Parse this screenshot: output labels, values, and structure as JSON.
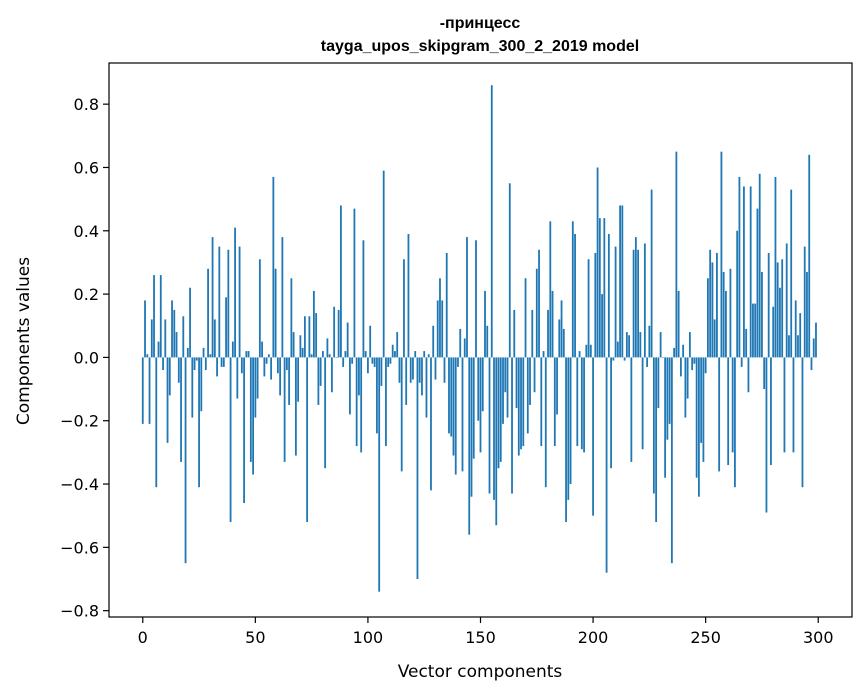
{
  "chart_data": {
    "type": "bar",
    "title": "-принцесс",
    "subtitle": "tayga_upos_skipgram_300_2_2019 model",
    "xlabel": "Vector components",
    "ylabel": "Components values",
    "xlim": [
      -15,
      315
    ],
    "ylim": [
      -0.82,
      0.93
    ],
    "xticks": [
      0,
      50,
      100,
      150,
      200,
      250,
      300
    ],
    "yticks": [
      -0.8,
      -0.6,
      -0.4,
      -0.2,
      0.0,
      0.2,
      0.4,
      0.6,
      0.8
    ],
    "ytick_labels": [
      "−0.8",
      "−0.6",
      "−0.4",
      "−0.2",
      "0.0",
      "0.2",
      "0.4",
      "0.6",
      "0.8"
    ],
    "bar_color": "#1f77b4",
    "grid": false,
    "legend": "none",
    "values": [
      -0.21,
      0.18,
      0.01,
      -0.21,
      0.12,
      0.26,
      -0.41,
      0.05,
      0.26,
      -0.04,
      0.12,
      -0.27,
      -0.12,
      0.18,
      0.15,
      0.08,
      -0.08,
      -0.33,
      0.13,
      -0.65,
      0.03,
      0.22,
      -0.19,
      -0.04,
      -0.01,
      -0.41,
      -0.17,
      0.03,
      -0.04,
      0.28,
      0.01,
      0.38,
      0.12,
      -0.06,
      0.35,
      -0.03,
      -0.03,
      0.19,
      0.34,
      -0.52,
      0.05,
      0.41,
      -0.13,
      0.35,
      -0.05,
      -0.46,
      0.02,
      0.02,
      -0.33,
      -0.37,
      -0.19,
      -0.13,
      0.31,
      0.05,
      -0.06,
      -0.02,
      0.01,
      -0.07,
      0.57,
      0.28,
      -0.05,
      -0.12,
      0.38,
      -0.33,
      -0.04,
      -0.15,
      0.25,
      0.08,
      -0.31,
      -0.14,
      0.07,
      0.03,
      0.13,
      -0.52,
      0.13,
      0.01,
      0.21,
      0.14,
      -0.15,
      -0.09,
      0.02,
      -0.35,
      0.06,
      0.01,
      -0.11,
      0.16,
      0.0,
      0.15,
      0.48,
      -0.03,
      0.02,
      0.11,
      -0.18,
      -0.02,
      0.47,
      -0.28,
      -0.12,
      -0.3,
      0.37,
      0.02,
      -0.05,
      0.1,
      -0.02,
      -0.03,
      -0.24,
      -0.74,
      -0.09,
      0.59,
      -0.28,
      -0.03,
      -0.02,
      0.04,
      0.02,
      0.08,
      -0.08,
      -0.36,
      0.31,
      -0.15,
      0.39,
      -0.08,
      -0.07,
      0.02,
      -0.7,
      -0.08,
      -0.12,
      0.02,
      -0.19,
      0.01,
      -0.42,
      0.1,
      -0.07,
      0.18,
      0.25,
      0.18,
      -0.08,
      0.33,
      -0.24,
      -0.25,
      -0.31,
      -0.37,
      -0.03,
      0.09,
      -0.36,
      0.06,
      0.38,
      -0.56,
      -0.44,
      -0.32,
      0.37,
      -0.2,
      -0.3,
      -0.17,
      0.21,
      0.1,
      -0.43,
      0.86,
      -0.45,
      -0.53,
      -0.35,
      -0.33,
      -0.21,
      -0.11,
      -0.19,
      0.55,
      -0.43,
      0.15,
      -0.16,
      -0.31,
      -0.29,
      -0.28,
      0.25,
      -0.24,
      -0.15,
      0.15,
      -0.11,
      0.28,
      0.34,
      -0.28,
      0.02,
      -0.41,
      0.15,
      0.43,
      0.21,
      -0.28,
      -0.18,
      0.12,
      0.18,
      0.09,
      -0.52,
      -0.45,
      -0.4,
      0.43,
      0.39,
      -0.28,
      0.02,
      -0.29,
      -0.3,
      0.04,
      0.31,
      0.04,
      -0.5,
      0.33,
      0.6,
      0.44,
      0.2,
      0.44,
      -0.68,
      0.39,
      -0.35,
      -0.01,
      0.35,
      0.05,
      0.48,
      0.48,
      -0.01,
      0.08,
      0.07,
      -0.33,
      0.34,
      0.38,
      0.34,
      0.08,
      -0.29,
      0.36,
      -0.03,
      0.1,
      0.53,
      -0.43,
      -0.52,
      -0.16,
      0.08,
      0.0,
      -0.38,
      -0.26,
      -0.21,
      -0.65,
      0.03,
      0.65,
      0.21,
      -0.06,
      0.04,
      -0.19,
      -0.13,
      0.08,
      -0.04,
      -0.02,
      -0.38,
      -0.44,
      -0.27,
      -0.33,
      -0.05,
      0.25,
      0.34,
      0.3,
      0.12,
      0.33,
      -0.36,
      0.65,
      0.27,
      0.21,
      -0.34,
      0.28,
      -0.3,
      -0.41,
      0.4,
      0.57,
      -0.03,
      0.54,
      0.09,
      -0.11,
      0.54,
      0.17,
      0.17,
      0.47,
      0.58,
      0.27,
      -0.1,
      -0.49,
      0.33,
      -0.34,
      0.16,
      0.57,
      0.3,
      0.22,
      0.31,
      -0.3,
      0.36,
      0.07,
      0.53,
      -0.3,
      0.18,
      0.07,
      0.14,
      -0.41,
      0.35,
      0.27,
      0.64,
      -0.04,
      0.06,
      0.11
    ]
  }
}
